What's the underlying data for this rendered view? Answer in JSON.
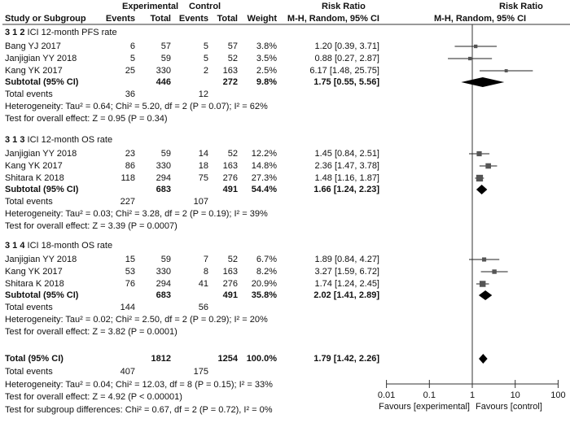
{
  "chart_data": {
    "type": "forest",
    "headers": {
      "experimental": "Experimental",
      "control": "Control",
      "risk_ratio": "Risk Ratio",
      "study": "Study or Subgroup",
      "events": "Events",
      "total": "Total",
      "weight": "Weight",
      "method": "M-H, Random, 95% CI"
    },
    "groups": [
      {
        "title": "3 1 2  ICI 12-month PFS rate",
        "studies": [
          {
            "name": "Bang YJ 2017",
            "e_events": "6",
            "e_total": "57",
            "c_events": "5",
            "c_total": "57",
            "weight": "3.8%",
            "rr_text": "1.20 [0.39, 3.71]",
            "rr": 1.2,
            "lo": 0.39,
            "hi": 3.71,
            "w": 3.8
          },
          {
            "name": "Janjigian YY 2018",
            "e_events": "5",
            "e_total": "59",
            "c_events": "5",
            "c_total": "52",
            "weight": "3.5%",
            "rr_text": "0.88 [0.27, 2.87]",
            "rr": 0.88,
            "lo": 0.27,
            "hi": 2.87,
            "w": 3.5
          },
          {
            "name": "Kang YK 2017",
            "e_events": "25",
            "e_total": "330",
            "c_events": "2",
            "c_total": "163",
            "weight": "2.5%",
            "rr_text": "6.17 [1.48, 25.75]",
            "rr": 6.17,
            "lo": 1.48,
            "hi": 25.75,
            "w": 2.5
          }
        ],
        "subtotal": {
          "label": "Subtotal (95% CI)",
          "e_total": "446",
          "c_total": "272",
          "weight": "9.8%",
          "rr_text": "1.75 [0.55, 5.56]",
          "rr": 1.75,
          "lo": 0.55,
          "hi": 5.56
        },
        "total_events": {
          "label": "Total events",
          "e": "36",
          "c": "12"
        },
        "heterogeneity": "Heterogeneity: Tau² = 0.64; Chi² = 5.20, df = 2 (P = 0.07); I² = 62%",
        "overall": "Test for overall effect: Z = 0.95 (P = 0.34)"
      },
      {
        "title": "3 1 3  ICI 12-month OS rate",
        "studies": [
          {
            "name": "Janjigian YY 2018",
            "e_events": "23",
            "e_total": "59",
            "c_events": "14",
            "c_total": "52",
            "weight": "12.2%",
            "rr_text": "1.45 [0.84, 2.51]",
            "rr": 1.45,
            "lo": 0.84,
            "hi": 2.51,
            "w": 12.2
          },
          {
            "name": "Kang YK 2017",
            "e_events": "86",
            "e_total": "330",
            "c_events": "18",
            "c_total": "163",
            "weight": "14.8%",
            "rr_text": "2.36 [1.47, 3.78]",
            "rr": 2.36,
            "lo": 1.47,
            "hi": 3.78,
            "w": 14.8
          },
          {
            "name": "Shitara K 2018",
            "e_events": "118",
            "e_total": "294",
            "c_events": "75",
            "c_total": "276",
            "weight": "27.3%",
            "rr_text": "1.48 [1.16, 1.87]",
            "rr": 1.48,
            "lo": 1.16,
            "hi": 1.87,
            "w": 27.3
          }
        ],
        "subtotal": {
          "label": "Subtotal (95% CI)",
          "e_total": "683",
          "c_total": "491",
          "weight": "54.4%",
          "rr_text": "1.66 [1.24, 2.23]",
          "rr": 1.66,
          "lo": 1.24,
          "hi": 2.23
        },
        "total_events": {
          "label": "Total events",
          "e": "227",
          "c": "107"
        },
        "heterogeneity": "Heterogeneity: Tau² = 0.03; Chi² = 3.28, df = 2 (P = 0.19); I² = 39%",
        "overall": "Test for overall effect: Z = 3.39 (P = 0.0007)"
      },
      {
        "title": "3 1 4  ICI 18-month OS rate",
        "studies": [
          {
            "name": "Janjigian YY 2018",
            "e_events": "15",
            "e_total": "59",
            "c_events": "7",
            "c_total": "52",
            "weight": "6.7%",
            "rr_text": "1.89 [0.84, 4.27]",
            "rr": 1.89,
            "lo": 0.84,
            "hi": 4.27,
            "w": 6.7
          },
          {
            "name": "Kang YK 2017",
            "e_events": "53",
            "e_total": "330",
            "c_events": "8",
            "c_total": "163",
            "weight": "8.2%",
            "rr_text": "3.27 [1.59, 6.72]",
            "rr": 3.27,
            "lo": 1.59,
            "hi": 6.72,
            "w": 8.2
          },
          {
            "name": "Shitara K 2018",
            "e_events": "76",
            "e_total": "294",
            "c_events": "41",
            "c_total": "276",
            "weight": "20.9%",
            "rr_text": "1.74 [1.24, 2.45]",
            "rr": 1.74,
            "lo": 1.24,
            "hi": 2.45,
            "w": 20.9
          }
        ],
        "subtotal": {
          "label": "Subtotal (95% CI)",
          "e_total": "683",
          "c_total": "491",
          "weight": "35.8%",
          "rr_text": "2.02 [1.41, 2.89]",
          "rr": 2.02,
          "lo": 1.41,
          "hi": 2.89
        },
        "total_events": {
          "label": "Total events",
          "e": "144",
          "c": "56"
        },
        "heterogeneity": "Heterogeneity: Tau² = 0.02; Chi² = 2.50, df = 2 (P = 0.29); I² = 20%",
        "overall": "Test for overall effect: Z = 3.82 (P = 0.0001)"
      }
    ],
    "total": {
      "label": "Total (95% CI)",
      "e_total": "1812",
      "c_total": "1254",
      "weight": "100.0%",
      "rr_text": "1.79 [1.42, 2.26]",
      "rr": 1.79,
      "lo": 1.42,
      "hi": 2.26
    },
    "total_events": {
      "label": "Total events",
      "e": "407",
      "c": "175"
    },
    "heterogeneity": "Heterogeneity: Tau² = 0.04; Chi² = 12.03, df = 8 (P = 0.15); I² = 33%",
    "overall": "Test for overall effect: Z = 4.92 (P < 0.00001)",
    "subgroup_test": "Test for subgroup differences: Chi² = 0.67, df = 2 (P = 0.72), I² = 0%",
    "axis": {
      "scale": "log",
      "ticks": [
        "0.01",
        "0.1",
        "1",
        "10",
        "100"
      ],
      "tick_values": [
        0.01,
        0.1,
        1,
        10,
        100
      ],
      "left_label": "Favours [experimental]",
      "right_label": "Favours [control]"
    }
  }
}
